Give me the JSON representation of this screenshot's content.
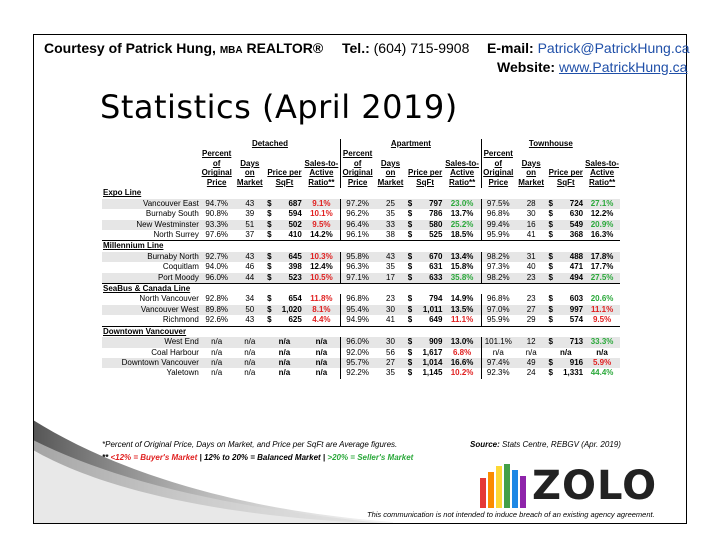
{
  "header": {
    "courtesy_prefix": "Courtesy of Patrick Hung, ",
    "mba": "MBA",
    "realtor": " REALTOR®",
    "tel_label": "Tel.:",
    "tel_value": "(604) 715-9908",
    "email_label": "E-mail:",
    "email_value": "Patrick@PatrickHung.ca",
    "website_label": "Website:",
    "website_value": "www.PatrickHung.ca"
  },
  "title": "Statistics (April 2019)",
  "table": {
    "group_headers": [
      "Detached",
      "Apartment",
      "Townhouse"
    ],
    "col_headers": [
      "Percent of Original Price",
      "Days on Market",
      "Price per SqFt",
      "Sales-to-Active Ratio**"
    ],
    "sections": [
      {
        "name": "Expo Line",
        "rows": [
          {
            "area": "Vancouver East",
            "shade": true,
            "d": [
              "94.7%",
              "43",
              "687",
              "9.1%"
            ],
            "a": [
              "97.2%",
              "25",
              "797",
              "23.0%"
            ],
            "t": [
              "97.5%",
              "28",
              "724",
              "27.1%"
            ]
          },
          {
            "area": "Burnaby South",
            "shade": false,
            "d": [
              "90.8%",
              "39",
              "594",
              "10.1%"
            ],
            "a": [
              "96.2%",
              "35",
              "786",
              "13.7%"
            ],
            "t": [
              "96.8%",
              "30",
              "630",
              "12.2%"
            ]
          },
          {
            "area": "New Westminster",
            "shade": true,
            "d": [
              "93.3%",
              "51",
              "502",
              "9.5%"
            ],
            "a": [
              "96.4%",
              "33",
              "580",
              "25.2%"
            ],
            "t": [
              "99.4%",
              "16",
              "549",
              "20.9%"
            ]
          },
          {
            "area": "North Surrey",
            "shade": false,
            "d": [
              "97.6%",
              "37",
              "410",
              "14.2%"
            ],
            "a": [
              "96.1%",
              "38",
              "525",
              "18.5%"
            ],
            "t": [
              "95.9%",
              "41",
              "368",
              "16.3%"
            ]
          }
        ]
      },
      {
        "name": "Millennium Line",
        "rows": [
          {
            "area": "Burnaby North",
            "shade": true,
            "d": [
              "92.7%",
              "43",
              "645",
              "10.3%"
            ],
            "a": [
              "95.8%",
              "43",
              "670",
              "13.4%"
            ],
            "t": [
              "98.2%",
              "31",
              "488",
              "17.8%"
            ]
          },
          {
            "area": "Coquitlam",
            "shade": false,
            "d": [
              "94.0%",
              "46",
              "398",
              "12.4%"
            ],
            "a": [
              "96.3%",
              "35",
              "631",
              "15.8%"
            ],
            "t": [
              "97.3%",
              "40",
              "471",
              "17.7%"
            ]
          },
          {
            "area": "Port Moody",
            "shade": true,
            "d": [
              "96.0%",
              "44",
              "523",
              "10.5%"
            ],
            "a": [
              "97.1%",
              "17",
              "633",
              "35.8%"
            ],
            "t": [
              "98.2%",
              "23",
              "494",
              "27.5%"
            ]
          }
        ]
      },
      {
        "name": "SeaBus & Canada Line",
        "rows": [
          {
            "area": "North Vancouver",
            "shade": false,
            "d": [
              "92.8%",
              "34",
              "654",
              "11.8%"
            ],
            "a": [
              "96.8%",
              "23",
              "794",
              "14.9%"
            ],
            "t": [
              "96.8%",
              "23",
              "603",
              "20.6%"
            ]
          },
          {
            "area": "Vancouver West",
            "shade": true,
            "d": [
              "89.8%",
              "50",
              "1,020",
              "8.1%"
            ],
            "a": [
              "95.4%",
              "30",
              "1,011",
              "13.5%"
            ],
            "t": [
              "97.0%",
              "27",
              "997",
              "11.1%"
            ]
          },
          {
            "area": "Richmond",
            "shade": false,
            "d": [
              "92.6%",
              "43",
              "625",
              "4.4%"
            ],
            "a": [
              "94.9%",
              "41",
              "649",
              "11.1%"
            ],
            "t": [
              "95.9%",
              "29",
              "574",
              "9.5%"
            ]
          }
        ]
      },
      {
        "name": "Downtown Vancouver",
        "rows": [
          {
            "area": "West End",
            "shade": true,
            "d": [
              "n/a",
              "n/a",
              "n/a",
              "n/a"
            ],
            "a": [
              "96.0%",
              "30",
              "909",
              "13.0%"
            ],
            "t": [
              "101.1%",
              "12",
              "713",
              "33.3%"
            ]
          },
          {
            "area": "Coal Harbour",
            "shade": false,
            "d": [
              "n/a",
              "n/a",
              "n/a",
              "n/a"
            ],
            "a": [
              "92.0%",
              "56",
              "1,617",
              "6.8%"
            ],
            "t": [
              "n/a",
              "n/a",
              "n/a",
              "n/a"
            ]
          },
          {
            "area": "Downtown Vancouver",
            "shade": true,
            "d": [
              "n/a",
              "n/a",
              "n/a",
              "n/a"
            ],
            "a": [
              "95.7%",
              "27",
              "1,014",
              "16.6%"
            ],
            "t": [
              "97.4%",
              "49",
              "916",
              "5.9%"
            ]
          },
          {
            "area": "Yaletown",
            "shade": false,
            "d": [
              "n/a",
              "n/a",
              "n/a",
              "n/a"
            ],
            "a": [
              "92.2%",
              "35",
              "1,145",
              "10.2%"
            ],
            "t": [
              "92.3%",
              "24",
              "1,331",
              "44.4%"
            ]
          }
        ]
      }
    ]
  },
  "notes": {
    "footnote": "*Percent of Original Price, Days on Market, and Price per SqFt are Average figures.",
    "source_label": "Source:",
    "source_value": " Stats Centre, REBGV (Apr. 2019)",
    "legend_prefix": "** ",
    "buyers": "<12% = Buyer's Market",
    "sep1": " | ",
    "balanced": "12% to 20% = Balanced Market",
    "sep2": " | ",
    "sellers": ">20% = Seller's Market"
  },
  "logo_text": "ZOLO",
  "disclaimer": "This communication is not intended to induce breach of an existing agency agreement.",
  "colors": {
    "link": "#1f4fa8",
    "buyers": "#e02020",
    "sellers": "#2aa83a",
    "shade": "#e6e6e6"
  }
}
